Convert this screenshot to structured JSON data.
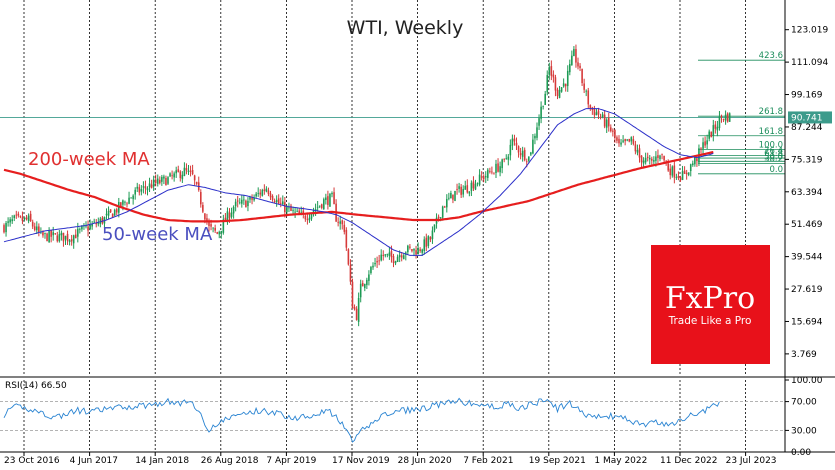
{
  "chart_data": [
    {
      "type": "candlestick",
      "title": "WTI, Weekly",
      "ylim": [
        -4,
        131
      ],
      "y_ticks": [
        "123.019",
        "111.094",
        "99.169",
        "87.244",
        "75.319",
        "63.394",
        "51.469",
        "39.544",
        "27.619",
        "15.694",
        "3.769"
      ],
      "y_tick_values": [
        123.019,
        111.094,
        99.169,
        87.244,
        75.319,
        63.394,
        51.469,
        39.544,
        27.619,
        15.694,
        3.769
      ],
      "x_ticks": [
        "23 Oct 2016",
        "4 Jun 2017",
        "14 Jan 2018",
        "26 Aug 2018",
        "7 Apr 2019",
        "17 Nov 2019",
        "28 Jun 2020",
        "7 Feb 2021",
        "19 Sep 2021",
        "1 May 2022",
        "11 Dec 2022",
        "23 Jul 2023"
      ],
      "x_tick_weeks": [
        0,
        32,
        64,
        96,
        128,
        160,
        192,
        224,
        256,
        288,
        320,
        352
      ],
      "current_price": {
        "label": "90.741",
        "value": 90.741
      },
      "close_series_anchors": [
        [
          0,
          50.5
        ],
        [
          5,
          53
        ],
        [
          12,
          53
        ],
        [
          18,
          47
        ],
        [
          25,
          47
        ],
        [
          32,
          46.5
        ],
        [
          40,
          50
        ],
        [
          46,
          52
        ],
        [
          52,
          55
        ],
        [
          58,
          59
        ],
        [
          64,
          63
        ],
        [
          72,
          66
        ],
        [
          80,
          68
        ],
        [
          88,
          71
        ],
        [
          92,
          69
        ],
        [
          96,
          60
        ],
        [
          100,
          50
        ],
        [
          104,
          48
        ],
        [
          112,
          58
        ],
        [
          120,
          60
        ],
        [
          128,
          65
        ],
        [
          134,
          59
        ],
        [
          140,
          56
        ],
        [
          146,
          54
        ],
        [
          150,
          56
        ],
        [
          156,
          60
        ],
        [
          160,
          61
        ],
        [
          162,
          54
        ],
        [
          166,
          50
        ],
        [
          170,
          22
        ],
        [
          172,
          18
        ],
        [
          174,
          28
        ],
        [
          178,
          34
        ],
        [
          184,
          40
        ],
        [
          190,
          39
        ],
        [
          196,
          42
        ],
        [
          202,
          42
        ],
        [
          208,
          46
        ],
        [
          214,
          58
        ],
        [
          220,
          63
        ],
        [
          226,
          65
        ],
        [
          232,
          68
        ],
        [
          238,
          71
        ],
        [
          244,
          74
        ],
        [
          248,
          82
        ],
        [
          252,
          78
        ],
        [
          256,
          76
        ],
        [
          260,
          88
        ],
        [
          264,
          100
        ],
        [
          266,
          109
        ],
        [
          270,
          100
        ],
        [
          274,
          104
        ],
        [
          278,
          114
        ],
        [
          280,
          110
        ],
        [
          282,
          104
        ],
        [
          286,
          94
        ],
        [
          290,
          92
        ],
        [
          296,
          86
        ],
        [
          300,
          80
        ],
        [
          306,
          82
        ],
        [
          310,
          76
        ],
        [
          316,
          74
        ],
        [
          320,
          78
        ],
        [
          324,
          72
        ],
        [
          328,
          70
        ],
        [
          332,
          69
        ],
        [
          334,
          72
        ],
        [
          338,
          76
        ],
        [
          342,
          82
        ],
        [
          346,
          86
        ],
        [
          350,
          91
        ]
      ],
      "ma_50_anchors": [
        [
          0,
          45
        ],
        [
          10,
          47
        ],
        [
          20,
          49
        ],
        [
          30,
          50
        ],
        [
          40,
          51
        ],
        [
          50,
          53
        ],
        [
          60,
          56
        ],
        [
          70,
          60
        ],
        [
          80,
          64
        ],
        [
          90,
          66
        ],
        [
          98,
          65
        ],
        [
          108,
          63
        ],
        [
          118,
          62
        ],
        [
          128,
          60
        ],
        [
          138,
          58
        ],
        [
          148,
          57
        ],
        [
          156,
          56
        ],
        [
          162,
          55
        ],
        [
          170,
          52
        ],
        [
          180,
          47
        ],
        [
          190,
          42
        ],
        [
          198,
          40
        ],
        [
          204,
          40
        ],
        [
          212,
          44
        ],
        [
          222,
          49
        ],
        [
          232,
          55
        ],
        [
          242,
          62
        ],
        [
          252,
          70
        ],
        [
          262,
          80
        ],
        [
          270,
          88
        ],
        [
          278,
          92
        ],
        [
          284,
          94
        ],
        [
          290,
          94
        ],
        [
          298,
          92
        ],
        [
          306,
          88
        ],
        [
          314,
          84
        ],
        [
          322,
          80
        ],
        [
          330,
          77
        ],
        [
          338,
          76
        ],
        [
          344,
          77
        ],
        [
          346,
          77.5
        ]
      ],
      "ma_200_anchors": [
        [
          0,
          71.5
        ],
        [
          8,
          70
        ],
        [
          20,
          67
        ],
        [
          32,
          64
        ],
        [
          44,
          61.5
        ],
        [
          56,
          58
        ],
        [
          68,
          55
        ],
        [
          80,
          53
        ],
        [
          92,
          52.5
        ],
        [
          104,
          52.5
        ],
        [
          116,
          53
        ],
        [
          128,
          54
        ],
        [
          140,
          55
        ],
        [
          150,
          55.5
        ],
        [
          160,
          56
        ],
        [
          172,
          55
        ],
        [
          186,
          54
        ],
        [
          200,
          53
        ],
        [
          212,
          53
        ],
        [
          222,
          54
        ],
        [
          232,
          56
        ],
        [
          244,
          58
        ],
        [
          256,
          60
        ],
        [
          268,
          63
        ],
        [
          280,
          66
        ],
        [
          290,
          68
        ],
        [
          300,
          70
        ],
        [
          310,
          72
        ],
        [
          322,
          74
        ],
        [
          334,
          76
        ],
        [
          346,
          78
        ]
      ],
      "fib_levels": [
        {
          "label": "423.6",
          "value": 111.8
        },
        {
          "label": "261.8",
          "value": 91.2
        },
        {
          "label": "161.8",
          "value": 84.0
        },
        {
          "label": "100.0",
          "value": 79.0
        },
        {
          "label": "76.4",
          "value": 76.8
        },
        {
          "label": "61.8",
          "value": 75.8
        },
        {
          "label": "50.0",
          "value": 74.6
        },
        {
          "label": "38.2",
          "value": 73.8
        },
        {
          "label": "0.0",
          "value": 70.0
        }
      ],
      "annotations": [
        "200-week MA",
        "50-week MA"
      ],
      "colors": {
        "up": "#1d9a54",
        "down": "#d63a3a",
        "ma_50": "#2b2fc9",
        "ma_200": "#e61e1e",
        "grid": "#000000",
        "price_line": "#3c9b8b",
        "fib": "#1a8c5a"
      }
    },
    {
      "type": "line",
      "label": "RSI(14) 66.50",
      "ylim": [
        0,
        100
      ],
      "y_ticks": [
        "100.00",
        "70.00",
        "30.00",
        "0.00"
      ],
      "y_tick_values": [
        100,
        70,
        30,
        0
      ],
      "rsi_anchors": [
        [
          0,
          52
        ],
        [
          6,
          63
        ],
        [
          12,
          60
        ],
        [
          18,
          55
        ],
        [
          24,
          48
        ],
        [
          30,
          52
        ],
        [
          36,
          58
        ],
        [
          42,
          55
        ],
        [
          50,
          60
        ],
        [
          58,
          62
        ],
        [
          66,
          64
        ],
        [
          72,
          66
        ],
        [
          80,
          70
        ],
        [
          86,
          67
        ],
        [
          92,
          70
        ],
        [
          96,
          50
        ],
        [
          100,
          32
        ],
        [
          104,
          38
        ],
        [
          110,
          48
        ],
        [
          118,
          54
        ],
        [
          126,
          58
        ],
        [
          134,
          53
        ],
        [
          142,
          47
        ],
        [
          150,
          52
        ],
        [
          158,
          58
        ],
        [
          164,
          42
        ],
        [
          170,
          15
        ],
        [
          176,
          33
        ],
        [
          184,
          50
        ],
        [
          190,
          55
        ],
        [
          196,
          58
        ],
        [
          204,
          60
        ],
        [
          212,
          66
        ],
        [
          222,
          70
        ],
        [
          230,
          66
        ],
        [
          238,
          63
        ],
        [
          246,
          66
        ],
        [
          252,
          61
        ],
        [
          258,
          67
        ],
        [
          264,
          72
        ],
        [
          270,
          60
        ],
        [
          276,
          68
        ],
        [
          282,
          54
        ],
        [
          290,
          48
        ],
        [
          298,
          50
        ],
        [
          306,
          43
        ],
        [
          312,
          38
        ],
        [
          318,
          41
        ],
        [
          324,
          36
        ],
        [
          330,
          45
        ],
        [
          336,
          52
        ],
        [
          342,
          58
        ],
        [
          348,
          66.5
        ]
      ]
    }
  ],
  "branding": {
    "logo_text": "FxPro",
    "tagline": "Trade Like a Pro",
    "logo_color": "#e8111a"
  }
}
